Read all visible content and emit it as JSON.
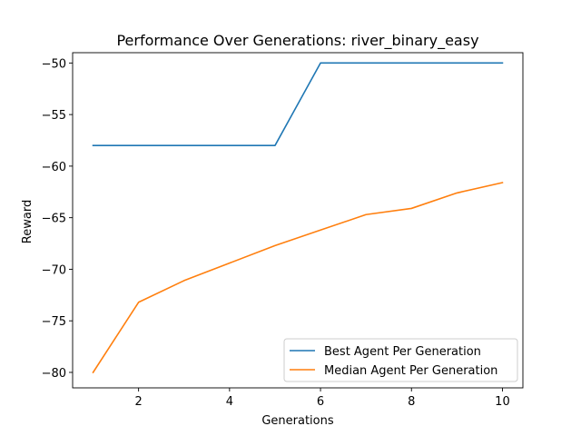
{
  "chart_data": {
    "type": "line",
    "title": "Performance Over Generations: river_binary_easy",
    "xlabel": "Generations",
    "ylabel": "Reward",
    "xlim": [
      0.55,
      10.45
    ],
    "ylim": [
      -81.5,
      -49.0
    ],
    "xticks": [
      2,
      4,
      6,
      8,
      10
    ],
    "yticks": [
      -80,
      -75,
      -70,
      -65,
      -60,
      -55,
      -50
    ],
    "ytick_labels": [
      "−80",
      "−75",
      "−70",
      "−65",
      "−60",
      "−55",
      "−50"
    ],
    "x": [
      1,
      2,
      3,
      4,
      5,
      6,
      7,
      8,
      9,
      10
    ],
    "series": [
      {
        "name": "Best Agent Per Generation",
        "color": "#1f77b4",
        "values": [
          -58,
          -58,
          -58,
          -58,
          -58,
          -50,
          -50,
          -50,
          -50,
          -50
        ]
      },
      {
        "name": "Median Agent Per Generation",
        "color": "#ff7f0e",
        "values": [
          -80.0,
          -73.2,
          -71.1,
          -69.4,
          -67.7,
          -66.2,
          -64.7,
          -64.1,
          -62.6,
          -61.6
        ]
      }
    ],
    "legend_position": "lower-right",
    "grid": false
  }
}
